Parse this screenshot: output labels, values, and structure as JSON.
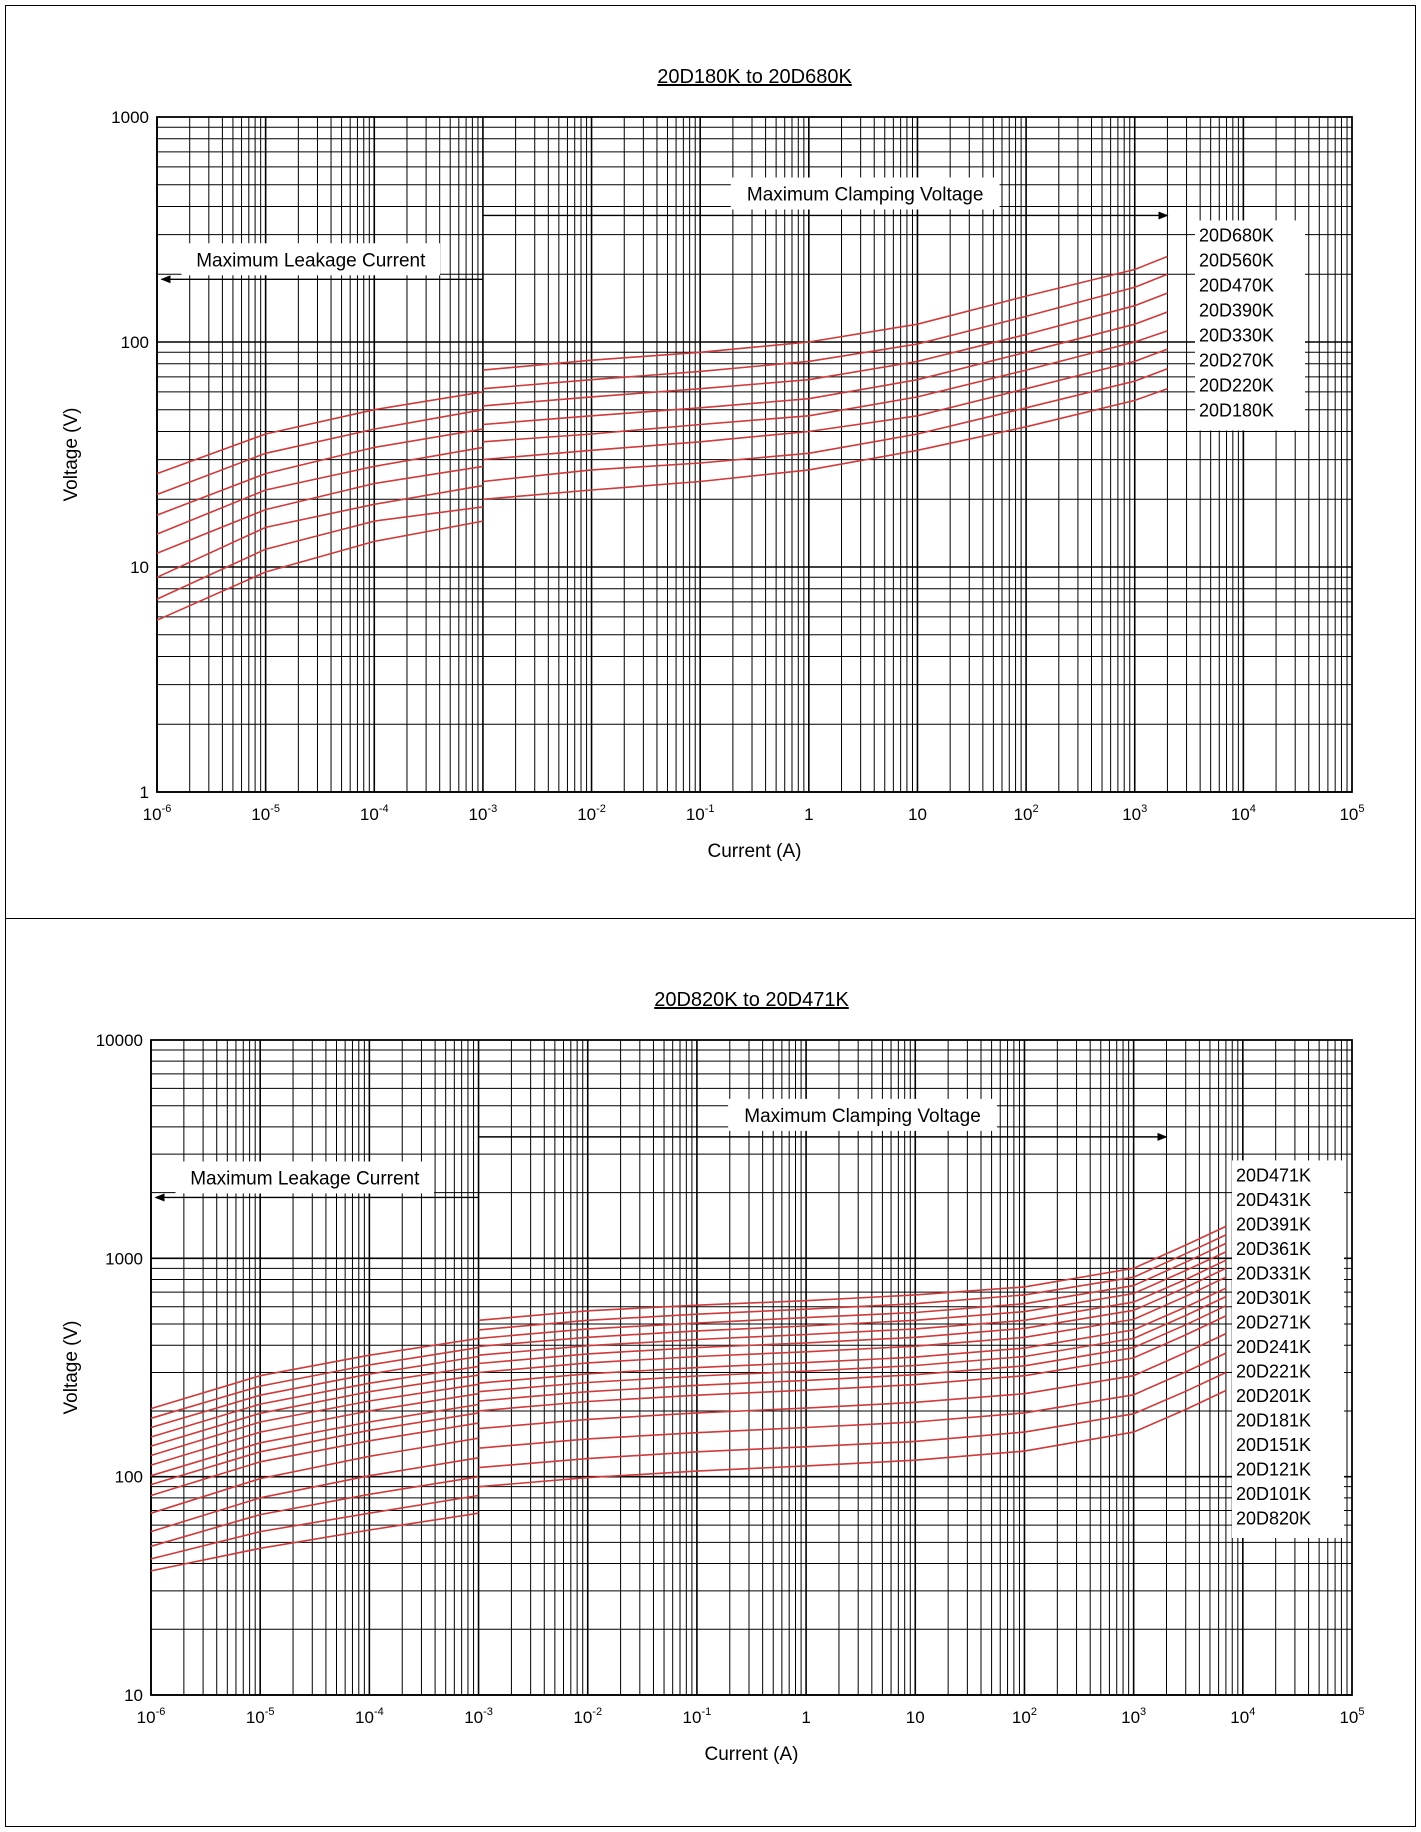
{
  "colors": {
    "grid": "#000000",
    "curve": "#d03a3a",
    "background": "#ffffff"
  },
  "chart_data": [
    {
      "type": "line",
      "title": "20D180K to 20D680K",
      "xlabel": "Current (A)",
      "ylabel": "Voltage (V)",
      "x_scale": "log",
      "y_scale": "log",
      "xlim": [
        1e-06,
        100000
      ],
      "ylim": [
        1,
        1000
      ],
      "x_ticks": [
        {
          "v": 1e-06,
          "base": "10",
          "exp": "-6"
        },
        {
          "v": 1e-05,
          "base": "10",
          "exp": "-5"
        },
        {
          "v": 0.0001,
          "base": "10",
          "exp": "-4"
        },
        {
          "v": 0.001,
          "base": "10",
          "exp": "-3"
        },
        {
          "v": 0.01,
          "base": "10",
          "exp": "-2"
        },
        {
          "v": 0.1,
          "base": "10",
          "exp": "-1"
        },
        {
          "v": 1,
          "base": "1",
          "exp": ""
        },
        {
          "v": 10,
          "base": "10",
          "exp": ""
        },
        {
          "v": 100,
          "base": "10",
          "exp": "2"
        },
        {
          "v": 1000,
          "base": "10",
          "exp": "3"
        },
        {
          "v": 10000,
          "base": "10",
          "exp": "4"
        },
        {
          "v": 100000,
          "base": "10",
          "exp": "5"
        }
      ],
      "y_ticks": [
        {
          "v": 1,
          "label": "1"
        },
        {
          "v": 10,
          "label": "10"
        },
        {
          "v": 100,
          "label": "100"
        },
        {
          "v": 1000,
          "label": "1000"
        }
      ],
      "grid": true,
      "annotations": {
        "leakage": {
          "text": "Maximum Leakage Current",
          "x_from": 0.001,
          "x_to": 1.1e-06,
          "y": 190
        },
        "clamping": {
          "text": "Maximum Clamping Voltage",
          "x_from": 0.001,
          "x_to": 2000,
          "y": 365
        }
      },
      "series_labels": [
        "20D680K",
        "20D560K",
        "20D470K",
        "20D390K",
        "20D330K",
        "20D270K",
        "20D220K",
        "20D180K"
      ],
      "leakage_series": [
        {
          "x": [
            1e-06,
            1e-05,
            0.0001,
            0.001
          ],
          "y": [
            26,
            39,
            50,
            60
          ]
        },
        {
          "x": [
            1e-06,
            1e-05,
            0.0001,
            0.001
          ],
          "y": [
            21,
            32,
            41,
            50
          ]
        },
        {
          "x": [
            1e-06,
            1e-05,
            0.0001,
            0.001
          ],
          "y": [
            17,
            26,
            34,
            41
          ]
        },
        {
          "x": [
            1e-06,
            1e-05,
            0.0001,
            0.001
          ],
          "y": [
            14,
            22,
            28,
            34
          ]
        },
        {
          "x": [
            1e-06,
            1e-05,
            0.0001,
            0.001
          ],
          "y": [
            11.5,
            18,
            23.5,
            28
          ]
        },
        {
          "x": [
            1e-06,
            1e-05,
            0.0001,
            0.001
          ],
          "y": [
            9,
            15,
            19,
            23
          ]
        },
        {
          "x": [
            1e-06,
            1e-05,
            0.0001,
            0.001
          ],
          "y": [
            7.2,
            12,
            16,
            18.5
          ]
        },
        {
          "x": [
            1e-06,
            1e-05,
            0.0001,
            0.001
          ],
          "y": [
            5.8,
            9.5,
            13,
            16
          ]
        }
      ],
      "clamping_series": [
        {
          "x": [
            0.001,
            0.01,
            0.1,
            1,
            10,
            100,
            1000,
            2000
          ],
          "y": [
            75,
            83,
            90,
            100,
            120,
            160,
            210,
            240
          ]
        },
        {
          "x": [
            0.001,
            0.01,
            0.1,
            1,
            10,
            100,
            1000,
            2000
          ],
          "y": [
            62,
            68,
            74,
            82,
            98,
            130,
            175,
            200
          ]
        },
        {
          "x": [
            0.001,
            0.01,
            0.1,
            1,
            10,
            100,
            1000,
            2000
          ],
          "y": [
            52,
            57,
            62,
            68,
            82,
            108,
            145,
            165
          ]
        },
        {
          "x": [
            0.001,
            0.01,
            0.1,
            1,
            10,
            100,
            1000,
            2000
          ],
          "y": [
            43,
            47,
            51,
            56,
            68,
            90,
            120,
            136
          ]
        },
        {
          "x": [
            0.001,
            0.01,
            0.1,
            1,
            10,
            100,
            1000,
            2000
          ],
          "y": [
            36,
            39,
            43,
            47,
            57,
            75,
            100,
            112
          ]
        },
        {
          "x": [
            0.001,
            0.01,
            0.1,
            1,
            10,
            100,
            1000,
            2000
          ],
          "y": [
            30,
            33,
            36,
            40,
            47,
            62,
            82,
            93
          ]
        },
        {
          "x": [
            0.001,
            0.01,
            0.1,
            1,
            10,
            100,
            1000,
            2000
          ],
          "y": [
            24,
            27,
            29,
            32,
            39,
            51,
            67,
            76
          ]
        },
        {
          "x": [
            0.001,
            0.01,
            0.1,
            1,
            10,
            100,
            1000,
            2000
          ],
          "y": [
            20,
            22,
            24,
            27,
            33,
            42,
            55,
            62
          ]
        }
      ]
    },
    {
      "type": "line",
      "title": "20D820K to 20D471K",
      "xlabel": "Current (A)",
      "ylabel": "Voltage (V)",
      "x_scale": "log",
      "y_scale": "log",
      "xlim": [
        1e-06,
        100000
      ],
      "ylim": [
        10,
        10000
      ],
      "x_ticks": [
        {
          "v": 1e-06,
          "base": "10",
          "exp": "-6"
        },
        {
          "v": 1e-05,
          "base": "10",
          "exp": "-5"
        },
        {
          "v": 0.0001,
          "base": "10",
          "exp": "-4"
        },
        {
          "v": 0.001,
          "base": "10",
          "exp": "-3"
        },
        {
          "v": 0.01,
          "base": "10",
          "exp": "-2"
        },
        {
          "v": 0.1,
          "base": "10",
          "exp": "-1"
        },
        {
          "v": 1,
          "base": "1",
          "exp": ""
        },
        {
          "v": 10,
          "base": "10",
          "exp": ""
        },
        {
          "v": 100,
          "base": "10",
          "exp": "2"
        },
        {
          "v": 1000,
          "base": "10",
          "exp": "3"
        },
        {
          "v": 10000,
          "base": "10",
          "exp": "4"
        },
        {
          "v": 100000,
          "base": "10",
          "exp": "5"
        }
      ],
      "y_ticks": [
        {
          "v": 10,
          "label": "10"
        },
        {
          "v": 100,
          "label": "100"
        },
        {
          "v": 1000,
          "label": "1000"
        },
        {
          "v": 10000,
          "label": "10000"
        }
      ],
      "grid": true,
      "annotations": {
        "leakage": {
          "text": "Maximum Leakage Current",
          "x_from": 0.001,
          "x_to": 1.1e-06,
          "y": 1900
        },
        "clamping": {
          "text": "Maximum Clamping Voltage",
          "x_from": 0.001,
          "x_to": 2000,
          "y": 3600
        }
      },
      "series_labels": [
        "20D471K",
        "20D431K",
        "20D391K",
        "20D361K",
        "20D331K",
        "20D301K",
        "20D271K",
        "20D241K",
        "20D221K",
        "20D201K",
        "20D181K",
        "20D151K",
        "20D121K",
        "20D101K",
        "20D820K"
      ],
      "leakage_series": [
        {
          "x": [
            1e-06,
            1e-05,
            0.0001,
            0.001
          ],
          "y": [
            205,
            290,
            360,
            430
          ]
        },
        {
          "x": [
            1e-06,
            1e-05,
            0.0001,
            0.001
          ],
          "y": [
            185,
            260,
            325,
            390
          ]
        },
        {
          "x": [
            1e-06,
            1e-05,
            0.0001,
            0.001
          ],
          "y": [
            168,
            236,
            295,
            355
          ]
        },
        {
          "x": [
            1e-06,
            1e-05,
            0.0001,
            0.001
          ],
          "y": [
            152,
            215,
            268,
            320
          ]
        },
        {
          "x": [
            1e-06,
            1e-05,
            0.0001,
            0.001
          ],
          "y": [
            138,
            195,
            245,
            292
          ]
        },
        {
          "x": [
            1e-06,
            1e-05,
            0.0001,
            0.001
          ],
          "y": [
            125,
            178,
            222,
            265
          ]
        },
        {
          "x": [
            1e-06,
            1e-05,
            0.0001,
            0.001
          ],
          "y": [
            113,
            160,
            200,
            240
          ]
        },
        {
          "x": [
            1e-06,
            1e-05,
            0.0001,
            0.001
          ],
          "y": [
            101,
            143,
            178,
            214
          ]
        },
        {
          "x": [
            1e-06,
            1e-05,
            0.0001,
            0.001
          ],
          "y": [
            92,
            130,
            163,
            196
          ]
        },
        {
          "x": [
            1e-06,
            1e-05,
            0.0001,
            0.001
          ],
          "y": [
            82,
            117,
            146,
            176
          ]
        },
        {
          "x": [
            1e-06,
            1e-05,
            0.0001,
            0.001
          ],
          "y": [
            68,
            98,
            124,
            150
          ]
        },
        {
          "x": [
            1e-06,
            1e-05,
            0.0001,
            0.001
          ],
          "y": [
            56,
            80,
            101,
            122
          ]
        },
        {
          "x": [
            1e-06,
            1e-05,
            0.0001,
            0.001
          ],
          "y": [
            48,
            67,
            83,
            100
          ]
        },
        {
          "x": [
            1e-06,
            1e-05,
            0.0001,
            0.001
          ],
          "y": [
            42,
            56,
            68,
            82
          ]
        },
        {
          "x": [
            1e-06,
            1e-05,
            0.0001,
            0.001
          ],
          "y": [
            37,
            47,
            57,
            68
          ]
        }
      ],
      "clamping_series": [
        {
          "x": [
            0.001,
            0.01,
            0.1,
            1,
            10,
            100,
            1000,
            3000,
            7000
          ],
          "y": [
            520,
            575,
            610,
            640,
            680,
            740,
            900,
            1150,
            1400
          ]
        },
        {
          "x": [
            0.001,
            0.01,
            0.1,
            1,
            10,
            100,
            1000,
            3000,
            7000
          ],
          "y": [
            470,
            520,
            555,
            585,
            620,
            680,
            820,
            1050,
            1280
          ]
        },
        {
          "x": [
            0.001,
            0.01,
            0.1,
            1,
            10,
            100,
            1000,
            3000,
            7000
          ],
          "y": [
            430,
            475,
            505,
            535,
            565,
            620,
            750,
            960,
            1170
          ]
        },
        {
          "x": [
            0.001,
            0.01,
            0.1,
            1,
            10,
            100,
            1000,
            3000,
            7000
          ],
          "y": [
            395,
            435,
            465,
            490,
            520,
            570,
            690,
            880,
            1070
          ]
        },
        {
          "x": [
            0.001,
            0.01,
            0.1,
            1,
            10,
            100,
            1000,
            3000,
            7000
          ],
          "y": [
            360,
            398,
            425,
            448,
            475,
            520,
            630,
            800,
            980
          ]
        },
        {
          "x": [
            0.001,
            0.01,
            0.1,
            1,
            10,
            100,
            1000,
            3000,
            7000
          ],
          "y": [
            330,
            365,
            390,
            410,
            435,
            478,
            578,
            735,
            900
          ]
        },
        {
          "x": [
            0.001,
            0.01,
            0.1,
            1,
            10,
            100,
            1000,
            3000,
            7000
          ],
          "y": [
            300,
            332,
            355,
            373,
            396,
            435,
            525,
            670,
            820
          ]
        },
        {
          "x": [
            0.001,
            0.01,
            0.1,
            1,
            10,
            100,
            1000,
            3000,
            7000
          ],
          "y": [
            268,
            296,
            316,
            333,
            353,
            388,
            470,
            598,
            730
          ]
        },
        {
          "x": [
            0.001,
            0.01,
            0.1,
            1,
            10,
            100,
            1000,
            3000,
            7000
          ],
          "y": [
            245,
            270,
            289,
            304,
            323,
            355,
            430,
            547,
            668
          ]
        },
        {
          "x": [
            0.001,
            0.01,
            0.1,
            1,
            10,
            100,
            1000,
            3000,
            7000
          ],
          "y": [
            222,
            245,
            262,
            276,
            293,
            322,
            390,
            496,
            606
          ]
        },
        {
          "x": [
            0.001,
            0.01,
            0.1,
            1,
            10,
            100,
            1000,
            3000,
            7000
          ],
          "y": [
            200,
            221,
            236,
            249,
            264,
            290,
            350,
            446,
            545
          ]
        },
        {
          "x": [
            0.001,
            0.01,
            0.1,
            1,
            10,
            100,
            1000,
            3000,
            7000
          ],
          "y": [
            166,
            183,
            196,
            206,
            219,
            240,
            290,
            370,
            452
          ]
        },
        {
          "x": [
            0.001,
            0.01,
            0.1,
            1,
            10,
            100,
            1000,
            3000,
            7000
          ],
          "y": [
            135,
            149,
            159,
            168,
            178,
            196,
            237,
            302,
            368
          ]
        },
        {
          "x": [
            0.001,
            0.01,
            0.1,
            1,
            10,
            100,
            1000,
            3000,
            7000
          ],
          "y": [
            110,
            121,
            130,
            137,
            145,
            160,
            194,
            246,
            300
          ]
        },
        {
          "x": [
            0.001,
            0.01,
            0.1,
            1,
            10,
            100,
            1000,
            3000,
            7000
          ],
          "y": [
            90,
            99,
            106,
            112,
            119,
            131,
            160,
            203,
            248
          ]
        }
      ]
    }
  ]
}
